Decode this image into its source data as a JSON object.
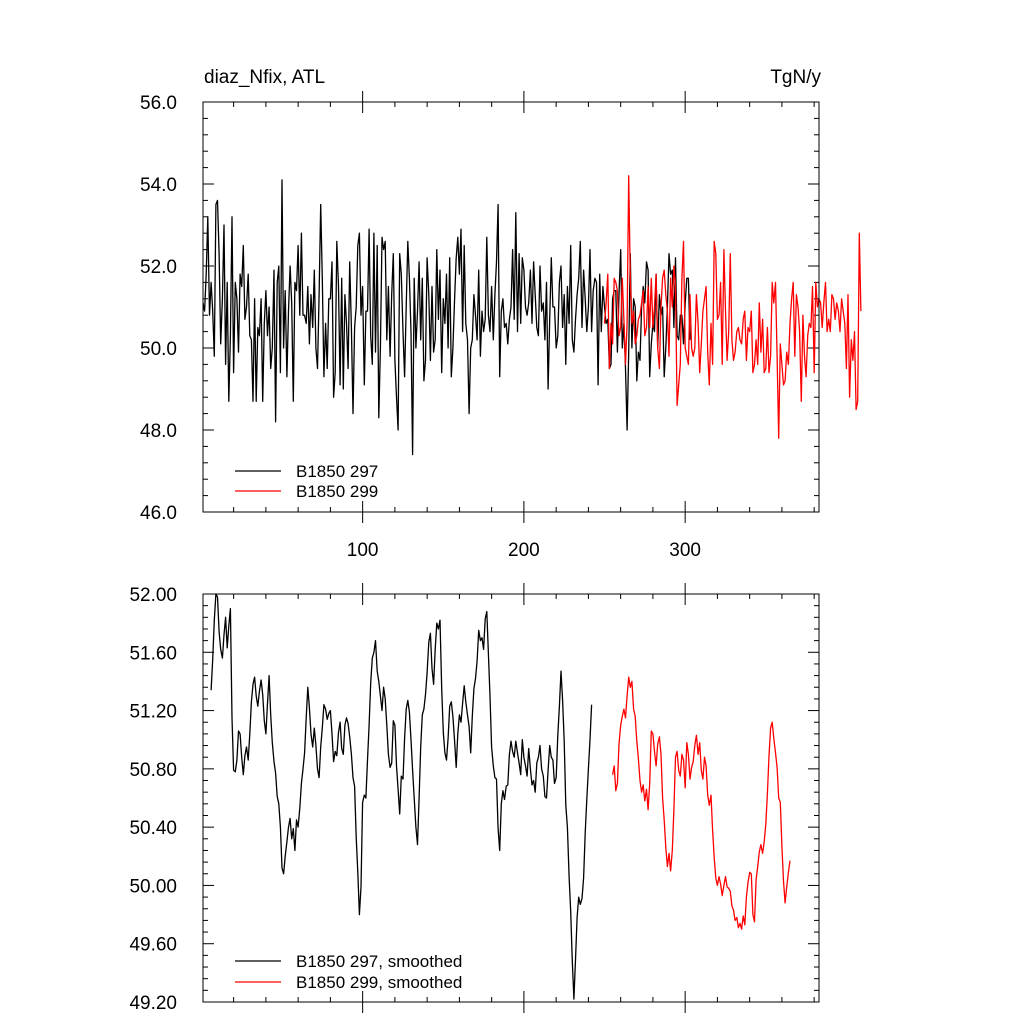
{
  "chart_data": [
    {
      "type": "line",
      "title_left": "diaz_Nfix, ATL",
      "title_right": "TgN/y",
      "xlim": [
        1,
        383
      ],
      "ylim": [
        46.0,
        56.0
      ],
      "yticks": [
        "46.0",
        "48.0",
        "50.0",
        "52.0",
        "54.0",
        "56.0"
      ],
      "xticks": [
        "100",
        "200",
        "300"
      ],
      "legend_position": "bottom-left",
      "series": [
        {
          "name": "B1850 297",
          "color": "#000000",
          "x_start": 1,
          "values": [
            51.1,
            50.9,
            51.8,
            53.2,
            50.8,
            51.6,
            50.9,
            49.8,
            53.5,
            53.6,
            52.3,
            50.1,
            51.2,
            53.0,
            49.6,
            51.6,
            48.7,
            50.3,
            53.2,
            49.4,
            51.6,
            51.2,
            49.9,
            51.8,
            51.5,
            52.5,
            50.7,
            51.0,
            51.8,
            50.3,
            50.2,
            48.7,
            51.2,
            48.7,
            50.5,
            50.3,
            51.2,
            48.7,
            50.6,
            51.4,
            50.3,
            51.0,
            49.5,
            50.0,
            51.9,
            48.2,
            51.6,
            52.0,
            49.4,
            54.1,
            50.0,
            51.4,
            49.3,
            50.9,
            52.0,
            51.1,
            48.7,
            51.6,
            51.4,
            52.5,
            50.8,
            52.8,
            50.8,
            50.8,
            50.6,
            51.5,
            50.1,
            51.3,
            50.5,
            51.9,
            50.0,
            49.5,
            51.3,
            53.5,
            51.7,
            49.3,
            50.6,
            49.5,
            51.2,
            51.2,
            52.1,
            48.8,
            49.4,
            52.6,
            51.5,
            49.1,
            51.7,
            49.0,
            51.3,
            50.6,
            49.5,
            52.1,
            50.5,
            48.4,
            50.5,
            51.0,
            52.5,
            52.8,
            50.8,
            51.5,
            49.1,
            50.9,
            50.9,
            52.9,
            50.3,
            49.6,
            52.8,
            49.9,
            52.5,
            48.3,
            50.0,
            52.7,
            52.4,
            52.6,
            50.2,
            51.5,
            49.8,
            51.3,
            52.3,
            49.7,
            48.8,
            48.0,
            52.3,
            51.8,
            50.4,
            49.3,
            51.0,
            52.6,
            51.7,
            50.4,
            47.4,
            51.7,
            50.0,
            50.9,
            52.1,
            50.2,
            51.7,
            49.2,
            49.7,
            52.2,
            51.3,
            49.7,
            51.5,
            49.9,
            50.2,
            52.4,
            50.7,
            51.9,
            49.4,
            51.2,
            50.6,
            51.8,
            50.0,
            52.2,
            49.3,
            50.0,
            51.2,
            52.2,
            52.7,
            51.8,
            52.9,
            50.4,
            52.5,
            50.6,
            50.2,
            48.4,
            50.0,
            50.2,
            51.3,
            50.8,
            50.2,
            51.9,
            49.8,
            50.9,
            50.4,
            50.7,
            52.7,
            50.8,
            50.4,
            51.5,
            50.2,
            51.3,
            52.1,
            53.5,
            49.3,
            50.9,
            51.2,
            50.5,
            50.6,
            50.1,
            50.7,
            51.0,
            52.4,
            50.7,
            53.3,
            50.4,
            52.3,
            50.6,
            52.2,
            51.9,
            51.0,
            50.8,
            51.1,
            51.9,
            50.6,
            52.1,
            51.3,
            50.5,
            50.3,
            52.0,
            50.9,
            51.1,
            50.2,
            51.6,
            49.0,
            50.7,
            52.2,
            51.0,
            51.0,
            50.0,
            50.3,
            51.6,
            52.0,
            50.5,
            51.3,
            49.6,
            51.5,
            50.6,
            52.5,
            50.2,
            49.9,
            50.7,
            51.3,
            51.7,
            52.6,
            50.5,
            51.9,
            51.2,
            50.4,
            51.0,
            52.4,
            50.4,
            51.4,
            51.7,
            51.6,
            49.1,
            51.8,
            50.4,
            51.5,
            51.0,
            50.6,
            50.7,
            49.5,
            49.6,
            51.2,
            51.4,
            51.4,
            49.9,
            51.3,
            52.4,
            50.0,
            50.6,
            49.5,
            48.0,
            49.9,
            52.3,
            50.0,
            51.2,
            51.0,
            49.2,
            49.9,
            49.7,
            51.0,
            51.5,
            51.1,
            52.1,
            51.9,
            49.3,
            50.1,
            50.6,
            50.4,
            51.8,
            50.0,
            51.3,
            50.8,
            51.0,
            49.3,
            50.0,
            51.0,
            52.3,
            51.8,
            51.9,
            50.5,
            52.2,
            50.3,
            50.2,
            50.8,
            50.8,
            50.1,
            51.1,
            51.7,
            51.7,
            50.2
          ]
        },
        {
          "name": "B1850 299",
          "color": "#ff0000",
          "x_start": 250,
          "values": [
            50.6,
            51.1,
            51.8,
            49.5,
            50.6,
            50.1,
            51.7,
            51.6,
            51.4,
            50.3,
            50.5,
            51.7,
            50.7,
            49.6,
            50.6,
            54.2,
            51.7,
            50.6,
            50.9,
            50.1,
            50.3,
            50.7,
            50.8,
            51.1,
            51.4,
            50.3,
            50.5,
            51.5,
            50.5,
            51.7,
            50.5,
            51.0,
            51.8,
            50.0,
            49.5,
            51.0,
            51.7,
            51.9,
            51.3,
            50.9,
            49.8,
            51.7,
            51.0,
            52.0,
            51.5,
            48.6,
            49.1,
            49.6,
            51.7,
            52.6,
            50.0,
            49.8,
            49.6,
            51.3,
            50.0,
            49.8,
            50.0,
            51.3,
            50.6,
            49.4,
            50.1,
            50.9,
            51.2,
            51.5,
            49.9,
            49.1,
            50.6,
            49.6,
            52.6,
            52.3,
            50.7,
            50.8,
            51.6,
            49.6,
            52.4,
            50.9,
            49.7,
            50.4,
            52.3,
            50.2,
            49.7,
            49.9,
            50.4,
            50.5,
            50.2,
            50.1,
            50.7,
            50.9,
            49.7,
            50.5,
            50.4,
            50.9,
            49.4,
            49.6,
            50.2,
            49.6,
            51.1,
            49.9,
            50.7,
            49.4,
            49.5,
            50.5,
            49.4,
            49.8,
            51.6,
            51.1,
            51.6,
            49.8,
            47.8,
            50.1,
            49.6,
            49.1,
            49.2,
            49.9,
            49.6,
            50.6,
            51.2,
            51.6,
            49.8,
            51.3,
            51.0,
            50.4,
            48.7,
            50.8,
            49.8,
            49.3,
            50.3,
            50.6,
            50.5,
            51.5,
            49.4,
            51.6,
            51.0,
            51.2,
            51.1,
            50.5,
            51.1,
            51.6,
            50.4,
            50.7,
            50.4,
            51.3,
            51.2,
            50.7,
            51.1,
            50.9,
            50.4,
            51.2,
            50.9,
            50.6,
            49.5,
            51.3,
            48.8,
            50.2,
            49.7,
            50.4,
            48.5,
            48.7,
            52.8,
            50.9
          ]
        }
      ]
    },
    {
      "type": "line",
      "xlim": [
        1,
        383
      ],
      "ylim": [
        49.2,
        52.0
      ],
      "yticks": [
        "49.20",
        "49.60",
        "50.00",
        "50.40",
        "50.80",
        "51.20",
        "51.60",
        "52.00"
      ],
      "legend_position": "bottom-left",
      "series": [
        {
          "name": "B1850 297, smoothed",
          "color": "#000000",
          "x_start": 6,
          "values": [
            51.34,
            51.55,
            51.82,
            52.0,
            51.98,
            51.74,
            51.62,
            51.56,
            51.72,
            51.84,
            51.63,
            51.78,
            51.9,
            51.15,
            50.79,
            50.78,
            50.86,
            51.06,
            51.04,
            50.88,
            50.76,
            50.89,
            50.95,
            50.86,
            51.04,
            51.26,
            51.38,
            51.43,
            51.3,
            51.23,
            51.33,
            51.41,
            51.31,
            51.13,
            51.04,
            51.25,
            51.44,
            51.17,
            50.98,
            50.85,
            50.77,
            50.61,
            50.56,
            50.4,
            50.12,
            50.08,
            50.2,
            50.3,
            50.4,
            50.46,
            50.32,
            50.39,
            50.24,
            50.45,
            50.4,
            50.53,
            50.7,
            50.8,
            50.91,
            51.15,
            51.36,
            51.22,
            51.04,
            50.95,
            51.08,
            50.96,
            50.8,
            50.74,
            50.95,
            51.08,
            51.24,
            51.21,
            51.14,
            51.18,
            51.2,
            51.04,
            50.85,
            50.92,
            50.89,
            51.05,
            51.12,
            50.94,
            50.9,
            51.1,
            51.15,
            51.11,
            51.02,
            50.9,
            50.74,
            50.68,
            50.33,
            50.09,
            49.8,
            49.99,
            50.57,
            50.62,
            50.6,
            50.86,
            51.1,
            51.39,
            51.56,
            51.6,
            51.68,
            51.47,
            51.4,
            51.3,
            51.2,
            51.36,
            51.28,
            51.1,
            50.9,
            50.81,
            50.84,
            51.13,
            51.1,
            50.82,
            50.66,
            50.49,
            50.75,
            50.73,
            51.01,
            51.21,
            51.27,
            51.19,
            51.0,
            50.79,
            50.6,
            50.4,
            50.28,
            50.6,
            50.95,
            51.17,
            51.21,
            51.31,
            51.46,
            51.67,
            51.73,
            51.49,
            51.38,
            51.62,
            51.8,
            51.76,
            51.82,
            51.35,
            51.05,
            50.91,
            50.86,
            51.01,
            51.23,
            51.26,
            51.16,
            50.99,
            50.81,
            51.04,
            51.17,
            51.12,
            51.25,
            51.37,
            51.26,
            51.17,
            51.09,
            50.91,
            51.16,
            51.35,
            51.42,
            51.54,
            51.75,
            51.68,
            51.7,
            51.62,
            51.83,
            51.88,
            51.59,
            51.3,
            50.95,
            50.82,
            50.74,
            50.73,
            50.39,
            50.24,
            50.56,
            50.65,
            50.59,
            50.68,
            50.69,
            50.9,
            50.99,
            50.92,
            50.88,
            50.99,
            50.91,
            50.84,
            50.76,
            51.0,
            50.88,
            50.82,
            50.75,
            50.94,
            50.8,
            50.69,
            50.72,
            50.64,
            50.84,
            50.88,
            50.96,
            50.8,
            50.75,
            50.61,
            50.6,
            50.79,
            50.96,
            50.88,
            50.86,
            50.7,
            50.74,
            51.03,
            51.23,
            51.47,
            51.27,
            50.99,
            50.55,
            50.4,
            50.06,
            49.82,
            49.48,
            49.22,
            49.49,
            49.78,
            49.92,
            49.87,
            49.91,
            50.05,
            50.36,
            50.59,
            50.8,
            51.0,
            51.24
          ]
        },
        {
          "name": "B1850 299, smoothed",
          "color": "#ff0000",
          "x_start": 255,
          "values": [
            50.76,
            50.82,
            50.65,
            50.7,
            50.97,
            51.1,
            51.16,
            51.21,
            51.15,
            51.3,
            51.43,
            51.36,
            51.4,
            51.21,
            51.16,
            50.99,
            50.87,
            50.72,
            50.64,
            50.69,
            50.58,
            50.66,
            50.52,
            50.7,
            51.06,
            51.04,
            50.92,
            50.82,
            50.97,
            51.02,
            50.9,
            50.6,
            50.45,
            50.26,
            50.13,
            50.22,
            50.1,
            50.24,
            50.52,
            50.88,
            50.92,
            50.79,
            50.75,
            50.9,
            50.86,
            50.67,
            50.98,
            50.9,
            50.73,
            50.81,
            50.85,
            50.96,
            51.03,
            50.9,
            50.98,
            50.79,
            50.73,
            50.88,
            50.82,
            50.62,
            50.55,
            50.62,
            50.38,
            50.19,
            50.05,
            50.0,
            50.06,
            50.01,
            49.93,
            50.0,
            50.06,
            49.99,
            49.98,
            49.96,
            49.86,
            49.83,
            49.76,
            49.78,
            49.71,
            49.74,
            49.7,
            49.79,
            49.73,
            49.92,
            50.02,
            50.09,
            50.08,
            49.8,
            49.75,
            50.04,
            50.13,
            50.23,
            50.28,
            50.22,
            50.3,
            50.42,
            50.63,
            50.89,
            51.08,
            51.12,
            51.01,
            50.91,
            50.81,
            50.6,
            50.57,
            50.27,
            50.03,
            49.88,
            49.99,
            50.09,
            50.17
          ]
        }
      ]
    }
  ]
}
